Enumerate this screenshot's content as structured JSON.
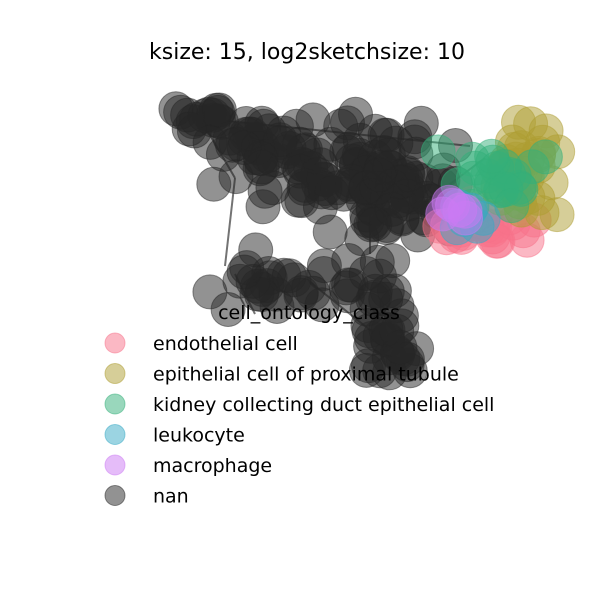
{
  "chart_data": {
    "type": "scatter",
    "title": "ksize: 15, log2sketchsize: 10",
    "xlabel": "",
    "ylabel": "",
    "axes_visible": false,
    "grid": false,
    "legend": {
      "title": "cell_ontology_class",
      "placement": "center-left",
      "entries": [
        {
          "label": "endothelial cell",
          "color": "#f77189"
        },
        {
          "label": "epithelial cell of proximal tubule",
          "color": "#ae9d31"
        },
        {
          "label": "kidney collecting duct epithelial cell",
          "color": "#33b07a"
        },
        {
          "label": "leukocyte",
          "color": "#38a9c5"
        },
        {
          "label": "macrophage",
          "color": "#cc7af4"
        },
        {
          "label": "nan",
          "color": "#262626"
        }
      ]
    },
    "series": [
      {
        "name": "nan",
        "color": "#262626",
        "regions": [
          {
            "center": [
              -2.0,
              4.3
            ],
            "spread": [
              0.35,
              0.2
            ],
            "n": 14
          },
          {
            "center": [
              -0.9,
              3.7
            ],
            "spread": [
              0.5,
              0.35
            ],
            "n": 20
          },
          {
            "center": [
              0.6,
              3.2
            ],
            "spread": [
              1.1,
              0.55
            ],
            "n": 70
          },
          {
            "center": [
              1.6,
              2.6
            ],
            "spread": [
              0.9,
              0.5
            ],
            "n": 40
          },
          {
            "center": [
              2.3,
              2.0
            ],
            "spread": [
              0.55,
              0.45
            ],
            "n": 18
          },
          {
            "center": [
              0.0,
              0.0
            ],
            "spread": [
              0.9,
              0.3
            ],
            "n": 30
          },
          {
            "center": [
              1.6,
              0.0
            ],
            "spread": [
              0.25,
              0.5
            ],
            "n": 10
          },
          {
            "center": [
              1.8,
              -1.3
            ],
            "spread": [
              0.3,
              0.5
            ],
            "n": 26
          },
          {
            "center": [
              -1.3,
              2.8
            ],
            "spread": [
              0.1,
              0.1
            ],
            "n": 1
          },
          {
            "center": [
              -0.8,
              1.0
            ],
            "spread": [
              0.1,
              0.1
            ],
            "n": 1
          },
          {
            "center": [
              -1.2,
              0.3
            ],
            "spread": [
              0.2,
              0.2
            ],
            "n": 2
          }
        ]
      },
      {
        "name": "endothelial cell",
        "color": "#f77189",
        "regions": [
          {
            "center": [
              3.7,
              1.6
            ],
            "spread": [
              0.5,
              0.25
            ],
            "n": 30
          }
        ]
      },
      {
        "name": "epithelial cell of proximal tubule",
        "color": "#ae9d31",
        "regions": [
          {
            "center": [
              4.4,
              3.0
            ],
            "spread": [
              0.35,
              0.55
            ],
            "n": 34
          }
        ]
      },
      {
        "name": "kidney collecting duct epithelial cell",
        "color": "#33b07a",
        "regions": [
          {
            "center": [
              3.8,
              2.7
            ],
            "spread": [
              0.45,
              0.4
            ],
            "n": 22
          },
          {
            "center": [
              2.9,
              3.3
            ],
            "spread": [
              0.1,
              0.1
            ],
            "n": 1
          }
        ]
      },
      {
        "name": "leukocyte",
        "color": "#38a9c5",
        "regions": [
          {
            "center": [
              3.3,
              1.7
            ],
            "spread": [
              0.2,
              0.2
            ],
            "n": 6
          }
        ]
      },
      {
        "name": "macrophage",
        "color": "#cc7af4",
        "regions": [
          {
            "center": [
              3.0,
              2.0
            ],
            "spread": [
              0.2,
              0.2
            ],
            "n": 6
          }
        ]
      }
    ],
    "edges": [
      [
        [
          -1.3,
          2.8
        ],
        [
          -1.5,
          0.6
        ]
      ],
      [
        [
          -1.3,
          2.8
        ],
        [
          -2.0,
          4.3
        ]
      ],
      [
        [
          -2.0,
          4.3
        ],
        [
          3.4,
          3.6
        ]
      ],
      [
        [
          2.3,
          2.0
        ],
        [
          3.7,
          3.3
        ]
      ],
      [
        [
          0.2,
          0.2
        ],
        [
          1.8,
          -1.4
        ]
      ],
      [
        [
          -1.3,
          0.4
        ],
        [
          -0.9,
          -0.6
        ]
      ],
      [
        [
          1.4,
          2.6
        ],
        [
          1.4,
          0.9
        ]
      ]
    ]
  }
}
